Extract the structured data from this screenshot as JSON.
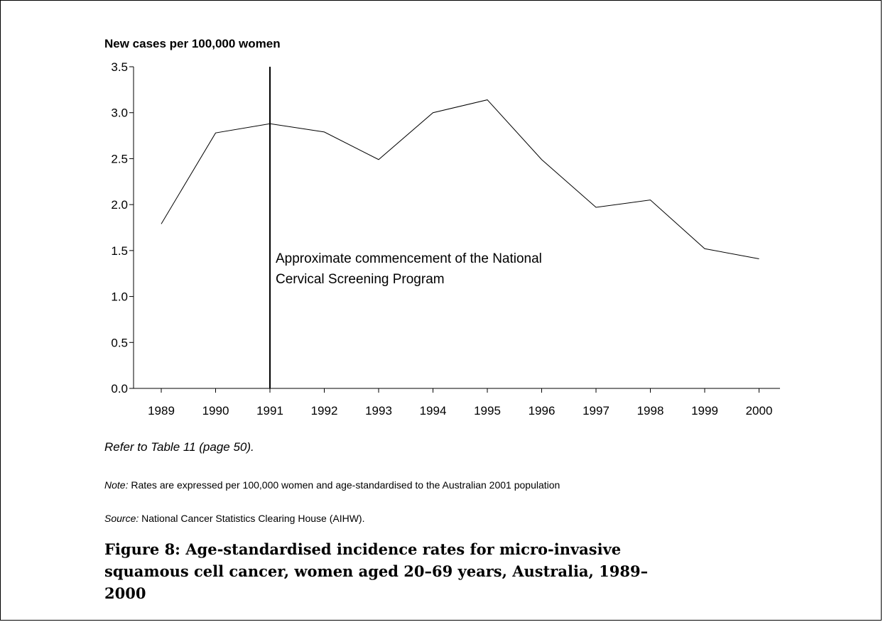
{
  "chart_data": {
    "type": "line",
    "ylabel": "New cases per 100,000 women",
    "x": [
      "1989",
      "1990",
      "1991",
      "1992",
      "1993",
      "1994",
      "1995",
      "1996",
      "1997",
      "1998",
      "1999",
      "2000"
    ],
    "series": [
      {
        "values": [
          1.79,
          2.78,
          2.88,
          2.79,
          2.49,
          3.0,
          3.14,
          2.49,
          1.97,
          2.05,
          1.52,
          1.41
        ]
      }
    ],
    "yticks": [
      "0.0",
      "0.5",
      "1.0",
      "1.5",
      "2.0",
      "2.5",
      "3.0",
      "3.5"
    ],
    "ylim": [
      0,
      3.5
    ],
    "grid": false,
    "annotation": {
      "x": "1991",
      "lines": [
        "Approximate commencement of the National",
        "Cervical Screening Program"
      ]
    }
  },
  "refer_text": "Refer to Table 11 (page 50).",
  "note": {
    "label": "Note:",
    "text": " Rates are expressed per 100,000 women and age-standardised to the Australian 2001 population"
  },
  "source": {
    "label": "Source:",
    "text": " National Cancer Statistics Clearing House (AIHW)."
  },
  "caption": "Figure 8: Age-standardised incidence rates for micro-invasive squamous cell cancer, women aged 20–69 years, Australia, 1989–2000"
}
